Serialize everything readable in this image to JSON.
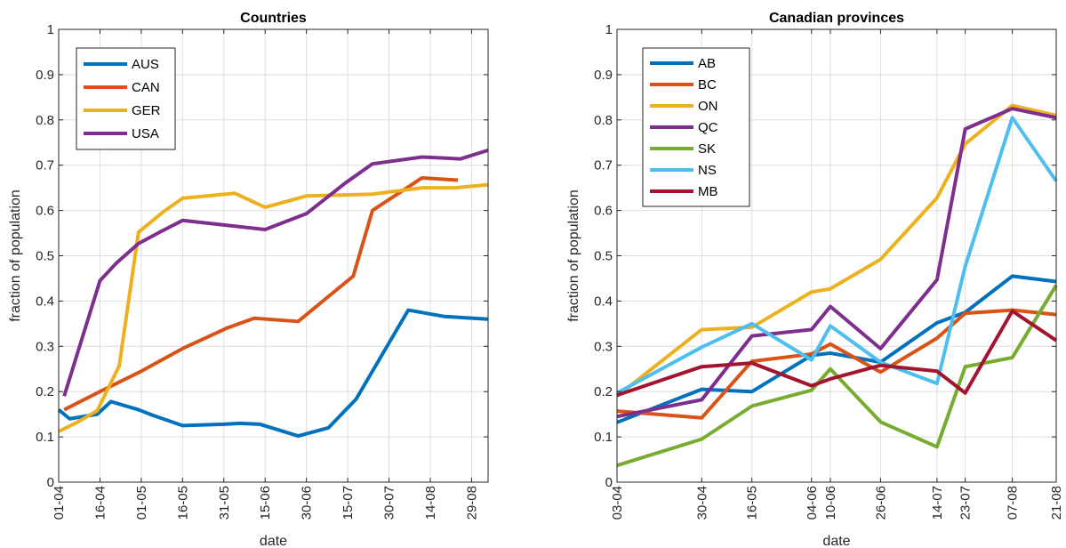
{
  "chart_data": [
    {
      "type": "line",
      "title": "Countries",
      "xlabel": "date",
      "ylabel": "fraction of population",
      "ylim": [
        0,
        1
      ],
      "yticks": [
        0,
        0.1,
        0.2,
        0.3,
        0.4,
        0.5,
        0.6,
        0.7,
        0.8,
        0.9,
        1
      ],
      "ytick_labels": [
        "0",
        "0.1",
        "0.2",
        "0.3",
        "0.4",
        "0.5",
        "0.6",
        "0.7",
        "0.8",
        "0.9",
        "1"
      ],
      "xlim": [
        "2020-04-01",
        "2020-09-04"
      ],
      "xticks": [
        "2020-04-01",
        "2020-04-16",
        "2020-05-01",
        "2020-05-16",
        "2020-05-31",
        "2020-06-15",
        "2020-06-30",
        "2020-07-15",
        "2020-07-30",
        "2020-08-14",
        "2020-08-29"
      ],
      "xtick_labels": [
        "01-04",
        "16-04",
        "01-05",
        "16-05",
        "31-05",
        "15-06",
        "30-06",
        "15-07",
        "30-07",
        "14-08",
        "29-08"
      ],
      "grid": true,
      "legend_position": "top-left",
      "series": [
        {
          "name": "AUS",
          "color": "#0072BD",
          "x": [
            "2020-04-01",
            "2020-04-05",
            "2020-04-15",
            "2020-04-20",
            "2020-04-30",
            "2020-05-05",
            "2020-05-16",
            "2020-05-31",
            "2020-06-06",
            "2020-06-13",
            "2020-06-27",
            "2020-07-08",
            "2020-07-18",
            "2020-08-06",
            "2020-08-19",
            "2020-09-04"
          ],
          "y": [
            0.16,
            0.14,
            0.15,
            0.178,
            0.16,
            0.148,
            0.125,
            0.128,
            0.13,
            0.128,
            0.102,
            0.12,
            0.183,
            0.38,
            0.366,
            0.36
          ]
        },
        {
          "name": "CAN",
          "color": "#D95319",
          "x": [
            "2020-04-03",
            "2020-04-16",
            "2020-05-01",
            "2020-05-16",
            "2020-06-01",
            "2020-06-11",
            "2020-06-27",
            "2020-07-17",
            "2020-07-24",
            "2020-08-11",
            "2020-08-24"
          ],
          "y": [
            0.16,
            0.2,
            0.245,
            0.295,
            0.34,
            0.362,
            0.355,
            0.455,
            0.6,
            0.672,
            0.667
          ]
        },
        {
          "name": "GER",
          "color": "#EDB120",
          "x": [
            "2020-04-01",
            "2020-04-08",
            "2020-04-15",
            "2020-04-23",
            "2020-04-30",
            "2020-05-09",
            "2020-05-16",
            "2020-06-04",
            "2020-06-15",
            "2020-06-30",
            "2020-07-24",
            "2020-08-11",
            "2020-08-23",
            "2020-09-04"
          ],
          "y": [
            0.112,
            0.133,
            0.158,
            0.257,
            0.552,
            0.597,
            0.627,
            0.638,
            0.607,
            0.632,
            0.636,
            0.65,
            0.65,
            0.657
          ]
        },
        {
          "name": "USA",
          "color": "#7E2F8E",
          "x": [
            "2020-04-03",
            "2020-04-16",
            "2020-04-22",
            "2020-04-30",
            "2020-05-08",
            "2020-05-16",
            "2020-05-31",
            "2020-06-15",
            "2020-06-30",
            "2020-07-14",
            "2020-07-24",
            "2020-08-11",
            "2020-08-25",
            "2020-09-04"
          ],
          "y": [
            0.19,
            0.445,
            0.484,
            0.527,
            0.553,
            0.578,
            0.568,
            0.558,
            0.593,
            0.66,
            0.703,
            0.718,
            0.714,
            0.733
          ]
        }
      ]
    },
    {
      "type": "line",
      "title": "Canadian provinces",
      "xlabel": "date",
      "ylabel": "fraction of population",
      "ylim": [
        0,
        1
      ],
      "yticks": [
        0,
        0.1,
        0.2,
        0.3,
        0.4,
        0.5,
        0.6,
        0.7,
        0.8,
        0.9,
        1
      ],
      "ytick_labels": [
        "0",
        "0.1",
        "0.2",
        "0.3",
        "0.4",
        "0.5",
        "0.6",
        "0.7",
        "0.8",
        "0.9",
        "1"
      ],
      "xlim": [
        "2020-04-03",
        "2020-08-21"
      ],
      "xticks": [
        "2020-04-03",
        "2020-04-30",
        "2020-05-16",
        "2020-06-04",
        "2020-06-10",
        "2020-06-26",
        "2020-07-14",
        "2020-07-23",
        "2020-08-07",
        "2020-08-21"
      ],
      "xtick_labels": [
        "03-04",
        "30-04",
        "16-05",
        "04-06",
        "10-06",
        "26-06",
        "14-07",
        "23-07",
        "07-08",
        "21-08"
      ],
      "grid": true,
      "legend_position": "top-left",
      "series": [
        {
          "name": "AB",
          "color": "#0072BD",
          "x": [
            "2020-04-03",
            "2020-04-30",
            "2020-05-16",
            "2020-06-04",
            "2020-06-10",
            "2020-06-26",
            "2020-07-14",
            "2020-07-23",
            "2020-08-07",
            "2020-08-21"
          ],
          "y": [
            0.132,
            0.205,
            0.2,
            0.28,
            0.285,
            0.265,
            0.352,
            0.375,
            0.455,
            0.443
          ]
        },
        {
          "name": "BC",
          "color": "#D95319",
          "x": [
            "2020-04-03",
            "2020-04-30",
            "2020-05-16",
            "2020-06-04",
            "2020-06-10",
            "2020-06-26",
            "2020-07-14",
            "2020-07-23",
            "2020-08-07",
            "2020-08-21"
          ],
          "y": [
            0.157,
            0.142,
            0.267,
            0.283,
            0.305,
            0.243,
            0.318,
            0.373,
            0.38,
            0.37
          ]
        },
        {
          "name": "ON",
          "color": "#EDB120",
          "x": [
            "2020-04-03",
            "2020-04-30",
            "2020-05-16",
            "2020-06-04",
            "2020-06-10",
            "2020-06-26",
            "2020-07-14",
            "2020-07-23",
            "2020-08-07",
            "2020-08-21"
          ],
          "y": [
            0.19,
            0.337,
            0.342,
            0.42,
            0.427,
            0.492,
            0.628,
            0.747,
            0.832,
            0.81
          ]
        },
        {
          "name": "QC",
          "color": "#7E2F8E",
          "x": [
            "2020-04-03",
            "2020-04-30",
            "2020-05-16",
            "2020-06-04",
            "2020-06-10",
            "2020-06-26",
            "2020-07-14",
            "2020-07-23",
            "2020-08-07",
            "2020-08-21"
          ],
          "y": [
            0.145,
            0.182,
            0.323,
            0.337,
            0.388,
            0.295,
            0.447,
            0.78,
            0.825,
            0.805
          ]
        },
        {
          "name": "SK",
          "color": "#77AC30",
          "x": [
            "2020-04-03",
            "2020-04-30",
            "2020-05-16",
            "2020-06-04",
            "2020-06-10",
            "2020-06-26",
            "2020-07-14",
            "2020-07-23",
            "2020-08-07",
            "2020-08-21"
          ],
          "y": [
            0.037,
            0.095,
            0.168,
            0.203,
            0.25,
            0.133,
            0.078,
            0.255,
            0.275,
            0.435
          ]
        },
        {
          "name": "NS",
          "color": "#4DBEEE",
          "x": [
            "2020-04-03",
            "2020-04-30",
            "2020-05-16",
            "2020-06-04",
            "2020-06-10",
            "2020-06-26",
            "2020-07-14",
            "2020-07-23",
            "2020-08-07",
            "2020-08-21"
          ],
          "y": [
            0.197,
            0.298,
            0.35,
            0.27,
            0.345,
            0.265,
            0.218,
            0.477,
            0.805,
            0.665
          ]
        },
        {
          "name": "MB",
          "color": "#A2142F",
          "x": [
            "2020-04-03",
            "2020-04-30",
            "2020-05-16",
            "2020-06-04",
            "2020-06-10",
            "2020-06-26",
            "2020-07-14",
            "2020-07-23",
            "2020-08-07",
            "2020-08-21"
          ],
          "y": [
            0.192,
            0.255,
            0.263,
            0.213,
            0.228,
            0.258,
            0.245,
            0.197,
            0.378,
            0.313
          ]
        }
      ]
    }
  ]
}
